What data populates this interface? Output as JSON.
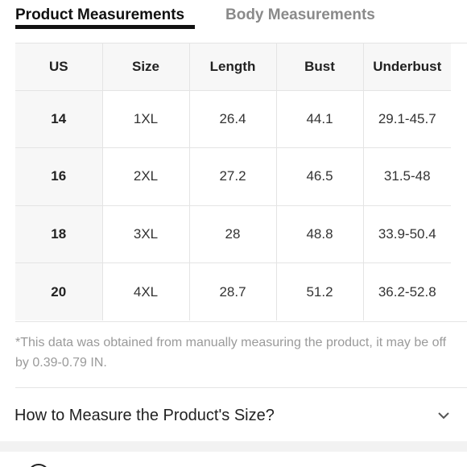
{
  "tabs": {
    "active_label": "Product Measurements",
    "inactive_label": "Body Measurements"
  },
  "table": {
    "headers": [
      "US",
      "Size",
      "Length",
      "Bust",
      "Underbust"
    ],
    "rows": [
      [
        "14",
        "1XL",
        "26.4",
        "44.1",
        "29.1-45.7"
      ],
      [
        "16",
        "2XL",
        "27.2",
        "46.5",
        "31.5-48"
      ],
      [
        "18",
        "3XL",
        "28",
        "48.8",
        "33.9-50.4"
      ],
      [
        "20",
        "4XL",
        "28.7",
        "51.2",
        "36.2-52.8"
      ]
    ]
  },
  "note": "*This data was obtained from manually measuring the product, it may be off by 0.39-0.79 IN.",
  "accordion": {
    "title": "How to Measure the Product's Size?",
    "icon": "chevron-down-icon"
  },
  "colors": {
    "active_tab": "#111111",
    "inactive_tab": "#8a8a8a",
    "header_bg": "#f7f7f7",
    "border": "#e4e4e4",
    "note_text": "#9a9a9a"
  }
}
